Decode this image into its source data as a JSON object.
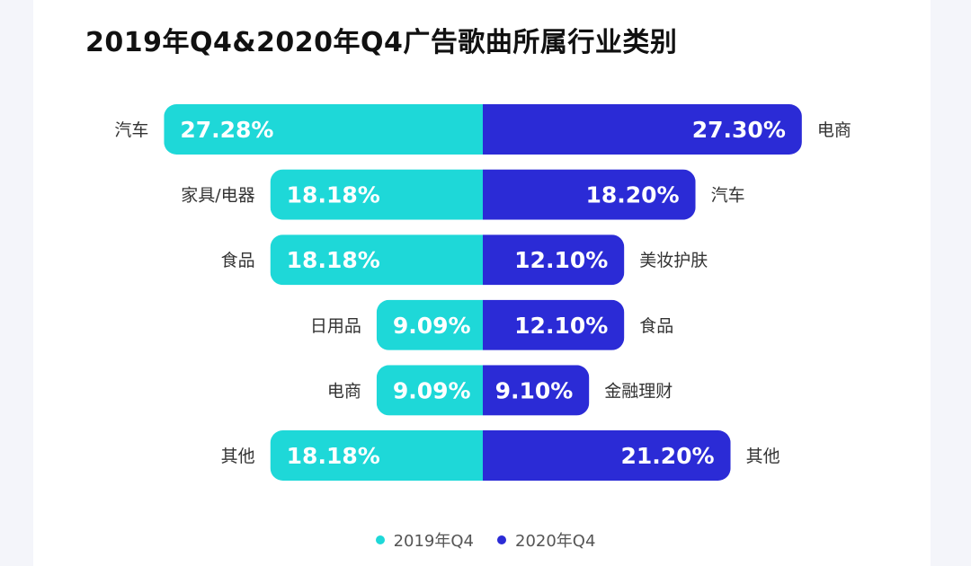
{
  "chart_data": {
    "type": "bar",
    "title": "2019年Q4&2020年Q4广告歌曲所属行业类别",
    "colors": {
      "left": "#1ed8d8",
      "right": "#2b2bd6"
    },
    "series": [
      {
        "name": "2019年Q4",
        "categories": [
          "汽车",
          "家具/电器",
          "食品",
          "日用品",
          "电商",
          "其他"
        ],
        "values": [
          27.28,
          18.18,
          18.18,
          9.09,
          9.09,
          18.18
        ],
        "labels": [
          "27.28%",
          "18.18%",
          "18.18%",
          "9.09%",
          "9.09%",
          "18.18%"
        ]
      },
      {
        "name": "2020年Q4",
        "categories": [
          "电商",
          "汽车",
          "美妆护肤",
          "食品",
          "金融理财",
          "其他"
        ],
        "values": [
          27.3,
          18.2,
          12.1,
          12.1,
          9.1,
          21.2
        ],
        "labels": [
          "27.30%",
          "18.20%",
          "12.10%",
          "12.10%",
          "9.10%",
          "21.20%"
        ]
      }
    ],
    "legend": [
      "2019年Q4",
      "2020年Q4"
    ]
  }
}
